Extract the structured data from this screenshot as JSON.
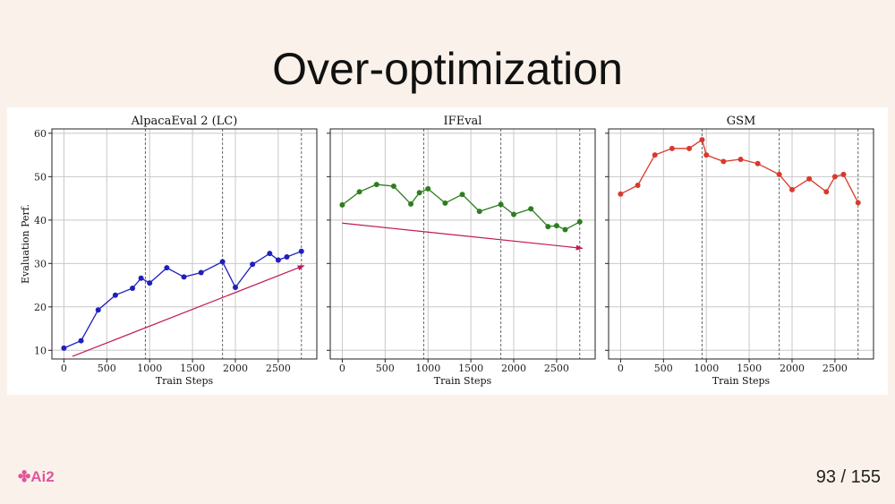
{
  "slide": {
    "title": "Over-optimization",
    "logo_text": "Ai2",
    "page_current": "93",
    "page_sep": " / ",
    "page_total": "155"
  },
  "colors": {
    "background": "#faf2ea",
    "trend_arrow": "#c2185b"
  },
  "chart_data": [
    {
      "type": "line",
      "title": "AlpacaEval 2 (LC)",
      "xlabel": "Train Steps",
      "ylabel": "Evaluation Perf.",
      "ylim": [
        8,
        61
      ],
      "yticks": [
        10,
        20,
        30,
        40,
        50,
        60
      ],
      "xticks": [
        0,
        500,
        1000,
        1500,
        2000,
        2500
      ],
      "grid": true,
      "color": "#1f1fbf",
      "vlines": [
        950,
        1850,
        2770
      ],
      "x": [
        0,
        200,
        400,
        600,
        800,
        900,
        1000,
        1200,
        1400,
        1600,
        1850,
        2000,
        2200,
        2400,
        2500,
        2600,
        2770
      ],
      "y": [
        10.5,
        12.2,
        19.3,
        22.7,
        24.3,
        26.6,
        25.5,
        29.0,
        26.9,
        27.9,
        30.4,
        24.5,
        29.8,
        32.3,
        30.8,
        31.5,
        32.8
      ],
      "trend": {
        "from": [
          100,
          8.6
        ],
        "to": [
          2800,
          29.5
        ]
      }
    },
    {
      "type": "line",
      "title": "IFEval",
      "xlabel": "Train Steps",
      "ylabel": "",
      "ylim": [
        8,
        61
      ],
      "yticks": [
        10,
        20,
        30,
        40,
        50,
        60
      ],
      "xticks": [
        0,
        500,
        1000,
        1500,
        2000,
        2500
      ],
      "grid": true,
      "color": "#2e7d1f",
      "vlines": [
        950,
        1850,
        2770
      ],
      "x": [
        0,
        200,
        400,
        600,
        800,
        900,
        1000,
        1200,
        1400,
        1600,
        1850,
        2000,
        2200,
        2400,
        2500,
        2600,
        2770
      ],
      "y": [
        43.5,
        46.5,
        48.2,
        47.8,
        43.7,
        46.3,
        47.2,
        43.9,
        45.9,
        42.0,
        43.6,
        41.3,
        42.6,
        38.5,
        38.7,
        37.8,
        39.6
      ],
      "trend": {
        "from": [
          0,
          39.3
        ],
        "to": [
          2800,
          33.5
        ]
      }
    },
    {
      "type": "line",
      "title": "GSM",
      "xlabel": "Train Steps",
      "ylabel": "",
      "ylim": [
        8,
        61
      ],
      "yticks": [
        10,
        20,
        30,
        40,
        50,
        60
      ],
      "xticks": [
        0,
        500,
        1000,
        1500,
        2000,
        2500
      ],
      "grid": true,
      "color": "#d9392b",
      "vlines": [
        950,
        1850,
        2770
      ],
      "x": [
        0,
        200,
        400,
        600,
        800,
        950,
        1000,
        1200,
        1400,
        1600,
        1850,
        2000,
        2200,
        2400,
        2500,
        2600,
        2770
      ],
      "y": [
        46.0,
        48.0,
        55.0,
        56.5,
        56.5,
        58.5,
        55.0,
        53.5,
        54.0,
        53.0,
        50.5,
        47.0,
        49.5,
        46.5,
        50.0,
        50.5,
        44.0
      ],
      "trend": null
    }
  ]
}
